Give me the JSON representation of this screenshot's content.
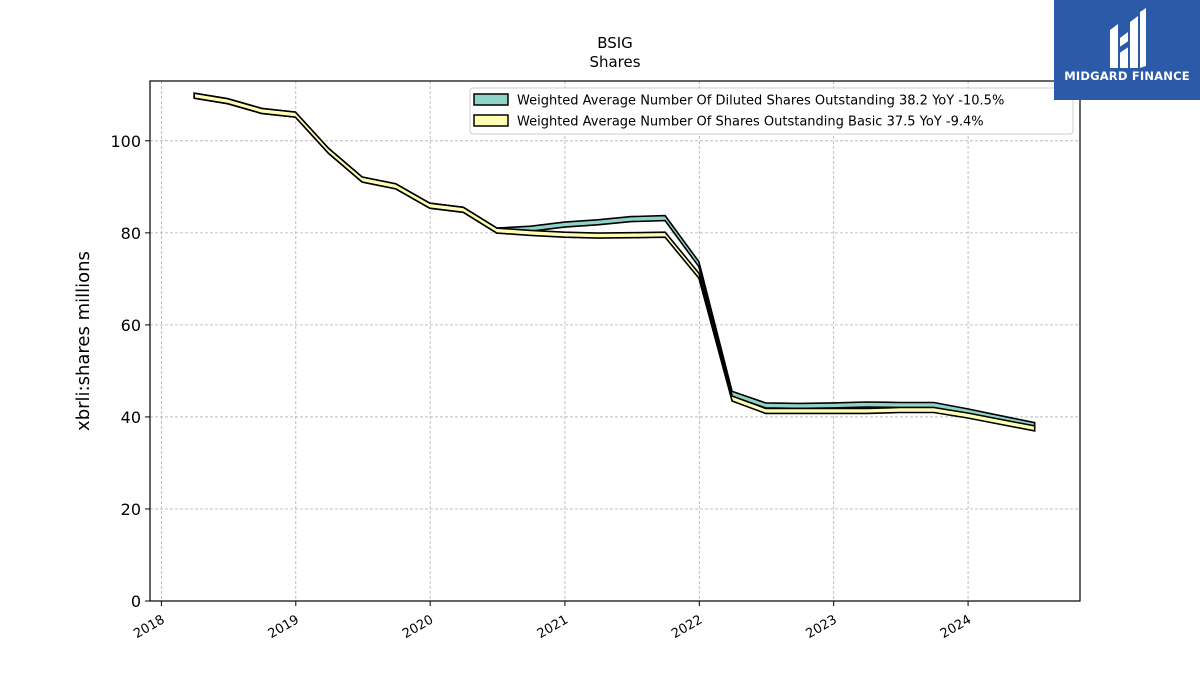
{
  "chart_data": {
    "type": "area",
    "title": "BSIG",
    "subtitle": "Shares",
    "xlabel": "",
    "ylabel": "xbrli:shares millions",
    "ylim": [
      0,
      113
    ],
    "xlim": [
      "2017-12-01",
      "2024-10-31"
    ],
    "y_ticks": [
      0,
      20,
      40,
      60,
      80,
      100
    ],
    "x_ticks": [
      "2018",
      "2019",
      "2020",
      "2021",
      "2022",
      "2023",
      "2024"
    ],
    "grid": true,
    "legend_position": "top-right",
    "x": [
      "2018-03-31",
      "2018-06-30",
      "2018-09-30",
      "2018-12-31",
      "2019-03-31",
      "2019-06-30",
      "2019-09-30",
      "2019-12-31",
      "2020-03-31",
      "2020-06-30",
      "2020-09-30",
      "2020-12-31",
      "2021-03-31",
      "2021-06-30",
      "2021-09-30",
      "2021-12-31",
      "2022-03-31",
      "2022-06-30",
      "2022-09-30",
      "2022-12-31",
      "2023-03-31",
      "2023-06-30",
      "2023-09-30",
      "2023-12-31",
      "2024-03-31",
      "2024-06-30"
    ],
    "series": [
      {
        "name": "Weighted Average Number Of Diluted Shares Outstanding",
        "legend_label": "Weighted Average Number Of Diluted Shares Outstanding  38.2 YoY -10.5%",
        "color": "#8dd3c7",
        "values": [
          109.8,
          108.6,
          106.5,
          105.7,
          97.8,
          91.6,
          90.1,
          85.9,
          85.0,
          80.5,
          80.9,
          81.8,
          82.3,
          83.0,
          83.2,
          73.2,
          45.0,
          42.5,
          42.4,
          42.5,
          42.7,
          42.6,
          42.6,
          41.2,
          39.7,
          38.2
        ]
      },
      {
        "name": "Weighted Average Number Of Shares Outstanding Basic",
        "legend_label": "Weighted Average Number Of Shares Outstanding Basic  37.5 YoY -9.4%",
        "color": "#ffffb3",
        "values": [
          109.8,
          108.6,
          106.5,
          105.7,
          97.8,
          91.6,
          90.1,
          85.9,
          85.0,
          80.5,
          80.0,
          79.6,
          79.4,
          79.5,
          79.6,
          70.7,
          44.0,
          41.3,
          41.3,
          41.3,
          41.3,
          41.5,
          41.5,
          40.3,
          38.9,
          37.5
        ]
      }
    ]
  },
  "logo": {
    "text": "MIDGARD FINANCE"
  }
}
